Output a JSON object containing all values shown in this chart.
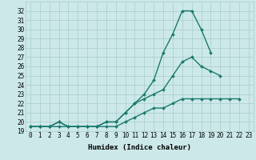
{
  "xlabel": "Humidex (Indice chaleur)",
  "x_values": [
    0,
    1,
    2,
    3,
    4,
    5,
    6,
    7,
    8,
    9,
    10,
    11,
    12,
    13,
    14,
    15,
    16,
    17,
    18,
    19,
    20,
    21,
    22,
    23
  ],
  "line1": [
    19.5,
    19.5,
    19.5,
    20.0,
    19.5,
    19.5,
    19.5,
    19.5,
    20.0,
    20.0,
    21.0,
    22.0,
    23.0,
    24.5,
    27.5,
    29.5,
    32.0,
    32.0,
    30.0,
    27.5,
    null,
    null,
    null,
    null
  ],
  "line2": [
    19.5,
    19.5,
    19.5,
    20.0,
    19.5,
    19.5,
    19.5,
    19.5,
    20.0,
    20.0,
    21.0,
    22.0,
    22.5,
    23.0,
    23.5,
    25.0,
    26.5,
    27.0,
    26.0,
    25.5,
    25.0,
    null,
    null,
    null
  ],
  "line3": [
    19.5,
    19.5,
    19.5,
    19.5,
    19.5,
    19.5,
    19.5,
    19.5,
    19.5,
    19.5,
    20.0,
    20.5,
    21.0,
    21.5,
    21.5,
    22.0,
    22.5,
    22.5,
    22.5,
    22.5,
    22.5,
    22.5,
    22.5,
    null
  ],
  "line_color": "#1a7a6e",
  "bg_color": "#cce8e8",
  "grid_color": "#aacccc",
  "ylim": [
    19,
    33
  ],
  "xlim": [
    -0.5,
    23.5
  ],
  "yticks": [
    19,
    20,
    21,
    22,
    23,
    24,
    25,
    26,
    27,
    28,
    29,
    30,
    31,
    32
  ],
  "xticks": [
    0,
    1,
    2,
    3,
    4,
    5,
    6,
    7,
    8,
    9,
    10,
    11,
    12,
    13,
    14,
    15,
    16,
    17,
    18,
    19,
    20,
    21,
    22,
    23
  ],
  "marker": "D",
  "marker_size": 2.0,
  "line_width": 1.0,
  "tick_fontsize": 5.5,
  "xlabel_fontsize": 6.5
}
